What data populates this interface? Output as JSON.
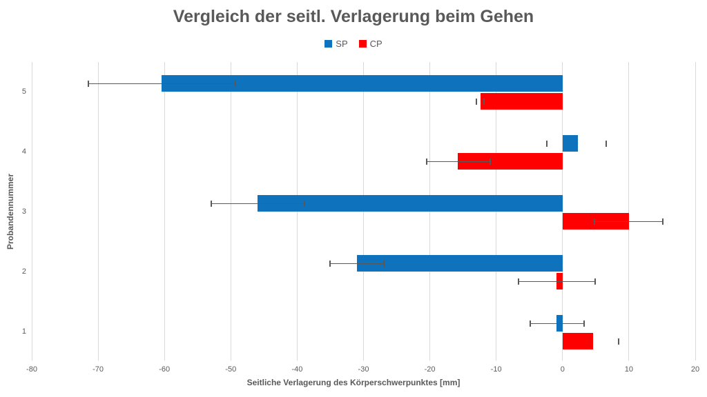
{
  "chart_data": {
    "type": "bar",
    "orientation": "horizontal",
    "title": "Vergleich der seitl. Verlagerung beim Gehen",
    "xlabel": "Seitliche Verlagerung des Körperschwerpunktes [mm]",
    "ylabel": "Probandennummer",
    "xlim": [
      -80,
      20
    ],
    "xticks": [
      -80,
      -70,
      -60,
      -50,
      -40,
      -30,
      -20,
      -10,
      0,
      10,
      20
    ],
    "categories": [
      "5",
      "4",
      "3",
      "2",
      "1"
    ],
    "grid": true,
    "legend_position": "top-center",
    "colors": {
      "grid": "#d9d9d9",
      "error": "#595959",
      "text": "#595959"
    },
    "series": [
      {
        "name": "SP",
        "color": "#0e72bc",
        "values": [
          -60.4,
          2.3,
          -46.0,
          -31.0,
          -0.9
        ],
        "error_low": [
          -71.5,
          -2.4,
          -52.9,
          -35.0,
          -4.9
        ],
        "error_high": [
          -49.3,
          6.6,
          -38.9,
          -26.9,
          3.2
        ],
        "error_line": [
          true,
          false,
          true,
          true,
          true
        ]
      },
      {
        "name": "CP",
        "color": "#fe0000",
        "values": [
          -12.4,
          -15.8,
          10.0,
          -0.9,
          4.6
        ],
        "error_low": [
          -13.0,
          -20.5,
          4.8,
          -6.6,
          null
        ],
        "error_high": [
          -11.8,
          -10.9,
          15.1,
          4.9,
          8.5
        ],
        "error_line": [
          false,
          true,
          true,
          true,
          false
        ]
      }
    ]
  }
}
